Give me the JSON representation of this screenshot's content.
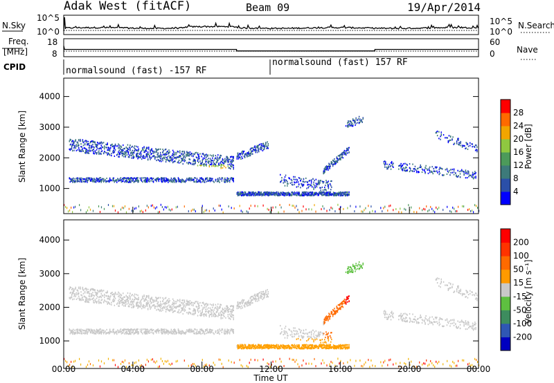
{
  "header": {
    "station": "Adak West (fitACF)",
    "beam": "Beam 09",
    "date": "19/Apr/2014"
  },
  "chart_data": [
    {
      "type": "line",
      "id": "nsky-panel",
      "left_label": "N.Sky",
      "right_label": "N.Search",
      "y_ticks_left": [
        "10^5",
        "10^0"
      ],
      "y_ticks_right": [
        "10^5",
        "10^0"
      ],
      "x_range_hours": [
        0,
        24
      ],
      "series": [
        {
          "name": "N.Sky",
          "profile": [
            [
              0,
              0.15
            ],
            [
              0.1,
              0.92
            ],
            [
              0.15,
              0.25
            ],
            [
              24,
              0.3
            ]
          ]
        },
        {
          "name": "N.Search",
          "profile": [
            [
              0,
              0.22
            ],
            [
              24,
              0.22
            ]
          ]
        }
      ]
    },
    {
      "type": "line",
      "id": "freq-panel",
      "left_label": "Freq.",
      "left_unit": "[MHz]",
      "right_label": "Nave",
      "y_ticks_left": [
        "18",
        "8"
      ],
      "y_ticks_right": [
        "60",
        "0"
      ],
      "series": [
        {
          "name": "Freq.",
          "steps": [
            [
              0,
              14.5
            ],
            [
              0.05,
              11.6
            ],
            [
              10,
              11.6
            ],
            [
              10,
              10.4
            ],
            [
              18,
              10.4
            ],
            [
              18,
              11.6
            ],
            [
              24,
              11.6
            ]
          ]
        },
        {
          "name": "Nave",
          "steps": [
            [
              0,
              20
            ],
            [
              24,
              20
            ]
          ]
        }
      ]
    },
    {
      "type": "table",
      "id": "cpid-panel",
      "label": "CPID",
      "segments": [
        {
          "start_hour": 0,
          "end_hour": 12,
          "text": "normalsound (fast) -157 RF"
        },
        {
          "start_hour": 12,
          "end_hour": 24,
          "text": "normalsound (fast) 157 RF"
        }
      ]
    },
    {
      "type": "heatmap",
      "id": "power-panel",
      "ylabel": "Slant Range [km]",
      "yticks": [
        "4000",
        "3000",
        "2000",
        "1000"
      ],
      "ylim": [
        180,
        4600
      ],
      "x_range_hours": [
        0,
        24
      ],
      "colorbar": {
        "label": "Power [dB]",
        "ticks": [
          "28",
          "24",
          "20",
          "16",
          "12",
          "8",
          "4"
        ],
        "range": [
          0,
          30
        ],
        "colors": [
          "#0000ff",
          "#2b4fa8",
          "#3d7a7a",
          "#4c9a5a",
          "#8fc840",
          "#f2a500",
          "#ff6a00",
          "#ff0000"
        ]
      }
    },
    {
      "type": "heatmap",
      "id": "velocity-panel",
      "ylabel": "Slant Range [km]",
      "yticks": [
        "4000",
        "3000",
        "2000",
        "1000"
      ],
      "ylim": [
        180,
        4600
      ],
      "x_range_hours": [
        0,
        24
      ],
      "xticks": [
        "00:00",
        "04:00",
        "08:00",
        "12:00",
        "16:00",
        "20:00",
        "00:00"
      ],
      "xlabel": "Time UT",
      "colorbar": {
        "label": "Velocity [m s⁻¹]",
        "ticks": [
          "200",
          "100",
          "50",
          "15",
          "-15",
          "-50",
          "-100",
          "-200"
        ],
        "colors": [
          "#0000c0",
          "#2f57b4",
          "#3d8c5e",
          "#5ec040",
          "#c9c9c9",
          "#ff9a00",
          "#ff6a00",
          "#ff3300",
          "#ff0000"
        ]
      }
    }
  ]
}
